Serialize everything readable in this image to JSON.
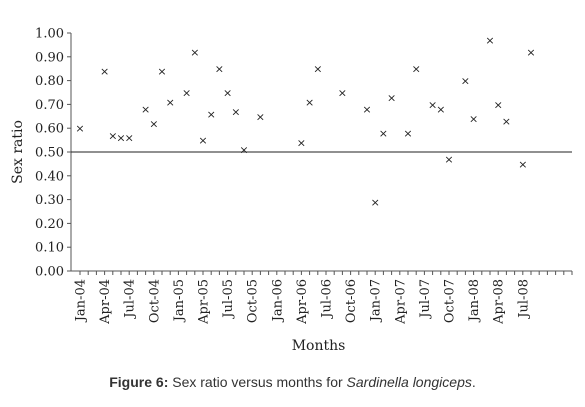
{
  "caption": {
    "label": "Figure 6:",
    "text": " Sex ratio versus months for ",
    "species": "Sardinella longiceps",
    "end": "."
  },
  "chart_data": {
    "type": "scatter",
    "xlabel": "Months",
    "ylabel": "Sex ratio",
    "ylim": [
      0,
      1
    ],
    "yticks": [
      "0.00",
      "0.10",
      "0.20",
      "0.30",
      "0.40",
      "0.50",
      "0.60",
      "0.70",
      "0.80",
      "0.90",
      "1.00"
    ],
    "xlim": [
      "Jan-04",
      "Dec-08"
    ],
    "xtick_labels": [
      "Jan-04",
      "Apr-04",
      "Jul-04",
      "Oct-04",
      "Jan-05",
      "Apr-05",
      "Jul-05",
      "Oct-05",
      "Jan-06",
      "Apr-06",
      "Jul-06",
      "Oct-06",
      "Jan-07",
      "Apr-07",
      "Jul-07",
      "Oct-07",
      "Jan-08",
      "Apr-08",
      "Jul-08"
    ],
    "marker": "×",
    "reference_line": 0.5,
    "grid": false,
    "points": [
      {
        "x": "Jan-04",
        "y": 0.6
      },
      {
        "x": "Apr-04",
        "y": 0.84
      },
      {
        "x": "May-04",
        "y": 0.57
      },
      {
        "x": "Jun-04",
        "y": 0.56
      },
      {
        "x": "Jul-04",
        "y": 0.56
      },
      {
        "x": "Sep-04",
        "y": 0.68
      },
      {
        "x": "Oct-04",
        "y": 0.62
      },
      {
        "x": "Nov-04",
        "y": 0.84
      },
      {
        "x": "Dec-04",
        "y": 0.71
      },
      {
        "x": "Feb-05",
        "y": 0.75
      },
      {
        "x": "Mar-05",
        "y": 0.92
      },
      {
        "x": "Apr-05",
        "y": 0.55
      },
      {
        "x": "May-05",
        "y": 0.66
      },
      {
        "x": "Jun-05",
        "y": 0.85
      },
      {
        "x": "Jul-05",
        "y": 0.75
      },
      {
        "x": "Aug-05",
        "y": 0.67
      },
      {
        "x": "Sep-05",
        "y": 0.51
      },
      {
        "x": "Nov-05",
        "y": 0.65
      },
      {
        "x": "Apr-06",
        "y": 0.54
      },
      {
        "x": "May-06",
        "y": 0.71
      },
      {
        "x": "Jun-06",
        "y": 0.85
      },
      {
        "x": "Sep-06",
        "y": 0.75
      },
      {
        "x": "Dec-06",
        "y": 0.68
      },
      {
        "x": "Jan-07",
        "y": 0.29
      },
      {
        "x": "Feb-07",
        "y": 0.58
      },
      {
        "x": "Mar-07",
        "y": 0.73
      },
      {
        "x": "May-07",
        "y": 0.58
      },
      {
        "x": "Jun-07",
        "y": 0.85
      },
      {
        "x": "Aug-07",
        "y": 0.7
      },
      {
        "x": "Sep-07",
        "y": 0.68
      },
      {
        "x": "Oct-07",
        "y": 0.47
      },
      {
        "x": "Dec-07",
        "y": 0.8
      },
      {
        "x": "Jan-08",
        "y": 0.64
      },
      {
        "x": "Mar-08",
        "y": 0.97
      },
      {
        "x": "Apr-08",
        "y": 0.7
      },
      {
        "x": "May-08",
        "y": 0.63
      },
      {
        "x": "Jul-08",
        "y": 0.45
      },
      {
        "x": "Aug-08",
        "y": 0.92
      }
    ]
  }
}
